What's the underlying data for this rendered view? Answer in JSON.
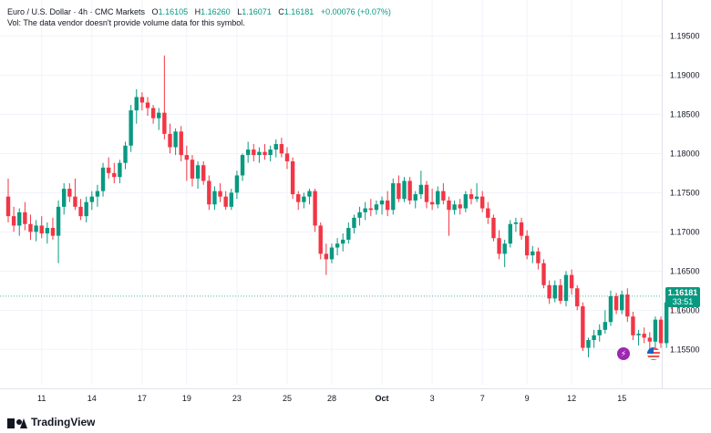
{
  "header": {
    "symbol": "Euro / U.S. Dollar · 4h · CMC Markets",
    "open_label": "O",
    "open": "1.16105",
    "high_label": "H",
    "high": "1.16260",
    "low_label": "L",
    "low": "1.16071",
    "close_label": "C",
    "close": "1.16181",
    "change": "+0.00076 (+0.07%)",
    "volume_note": "Vol: The data vendor doesn't provide volume data for this symbol."
  },
  "last_price": {
    "value": "1.16181",
    "countdown": "33:51"
  },
  "branding": {
    "name": "TradingView"
  },
  "events": {
    "flash_icon": "lightning-icon",
    "flag_icon": "us-flag-icon"
  },
  "colors": {
    "up": "#089981",
    "down": "#f23645",
    "grid": "#f0f3fa",
    "axis_text": "#131722"
  },
  "chart_data": {
    "type": "candlestick",
    "title": "",
    "ylim": [
      1.1505,
      1.199
    ],
    "yticks": [
      "1.19500",
      "1.19000",
      "1.18500",
      "1.18000",
      "1.17500",
      "1.17000",
      "1.16500",
      "1.16000",
      "1.15500"
    ],
    "ytick_values": [
      1.195,
      1.19,
      1.185,
      1.18,
      1.175,
      1.17,
      1.165,
      1.16,
      1.155
    ],
    "xticks": [
      {
        "label": "11",
        "index": 6
      },
      {
        "label": "14",
        "index": 15
      },
      {
        "label": "17",
        "index": 24
      },
      {
        "label": "19",
        "index": 32
      },
      {
        "label": "23",
        "index": 41
      },
      {
        "label": "25",
        "index": 50
      },
      {
        "label": "28",
        "index": 58
      },
      {
        "label": "Oct",
        "index": 67
      },
      {
        "label": "3",
        "index": 76
      },
      {
        "label": "7",
        "index": 85
      },
      {
        "label": "9",
        "index": 93
      },
      {
        "label": "12",
        "index": 101
      },
      {
        "label": "15",
        "index": 110
      }
    ],
    "grid": true,
    "candles": [
      [
        1.1745,
        1.1768,
        1.1712,
        1.172
      ],
      [
        1.172,
        1.1732,
        1.17,
        1.1708
      ],
      [
        1.1708,
        1.173,
        1.1695,
        1.1725
      ],
      [
        1.1725,
        1.1738,
        1.1702,
        1.171
      ],
      [
        1.171,
        1.1722,
        1.169,
        1.17
      ],
      [
        1.17,
        1.1715,
        1.1688,
        1.1708
      ],
      [
        1.1708,
        1.172,
        1.1692,
        1.1698
      ],
      [
        1.1698,
        1.1712,
        1.1685,
        1.1705
      ],
      [
        1.1705,
        1.1718,
        1.169,
        1.1695
      ],
      [
        1.1695,
        1.174,
        1.166,
        1.1732
      ],
      [
        1.1732,
        1.1762,
        1.1722,
        1.1755
      ],
      [
        1.1755,
        1.1762,
        1.1738,
        1.1745
      ],
      [
        1.1745,
        1.1768,
        1.1728,
        1.1732
      ],
      [
        1.1732,
        1.1742,
        1.1715,
        1.172
      ],
      [
        1.172,
        1.1745,
        1.1712,
        1.1738
      ],
      [
        1.1738,
        1.1752,
        1.1728,
        1.1745
      ],
      [
        1.1745,
        1.176,
        1.1732,
        1.1752
      ],
      [
        1.1752,
        1.1788,
        1.1745,
        1.1782
      ],
      [
        1.1782,
        1.1795,
        1.1768,
        1.1775
      ],
      [
        1.1775,
        1.1788,
        1.1762,
        1.177
      ],
      [
        1.177,
        1.1792,
        1.1762,
        1.1788
      ],
      [
        1.1788,
        1.1815,
        1.178,
        1.181
      ],
      [
        1.181,
        1.1862,
        1.1802,
        1.1855
      ],
      [
        1.1855,
        1.1882,
        1.1838,
        1.1872
      ],
      [
        1.1872,
        1.1878,
        1.1855,
        1.1865
      ],
      [
        1.1865,
        1.1872,
        1.1848,
        1.1858
      ],
      [
        1.1858,
        1.1862,
        1.1838,
        1.1845
      ],
      [
        1.1845,
        1.1858,
        1.183,
        1.1852
      ],
      [
        1.1852,
        1.1925,
        1.1818,
        1.1825
      ],
      [
        1.1825,
        1.1838,
        1.18,
        1.1808
      ],
      [
        1.1808,
        1.1832,
        1.1798,
        1.1828
      ],
      [
        1.1828,
        1.1835,
        1.179,
        1.1798
      ],
      [
        1.1798,
        1.181,
        1.1765,
        1.1792
      ],
      [
        1.1792,
        1.1798,
        1.1758,
        1.1768
      ],
      [
        1.1768,
        1.179,
        1.1755,
        1.1785
      ],
      [
        1.1785,
        1.179,
        1.176,
        1.1765
      ],
      [
        1.1765,
        1.1772,
        1.1728,
        1.1735
      ],
      [
        1.1735,
        1.1758,
        1.1728,
        1.1752
      ],
      [
        1.1752,
        1.1762,
        1.1738,
        1.1745
      ],
      [
        1.1745,
        1.1752,
        1.1728,
        1.1732
      ],
      [
        1.1732,
        1.1755,
        1.1728,
        1.175
      ],
      [
        1.175,
        1.1778,
        1.1742,
        1.1772
      ],
      [
        1.1772,
        1.18,
        1.1765,
        1.1798
      ],
      [
        1.1798,
        1.1815,
        1.1788,
        1.1805
      ],
      [
        1.1805,
        1.1812,
        1.179,
        1.1798
      ],
      [
        1.1798,
        1.1808,
        1.1788,
        1.1802
      ],
      [
        1.1802,
        1.1812,
        1.1792,
        1.1798
      ],
      [
        1.1798,
        1.181,
        1.179,
        1.1805
      ],
      [
        1.1805,
        1.1818,
        1.1795,
        1.1812
      ],
      [
        1.1812,
        1.182,
        1.1795,
        1.18
      ],
      [
        1.18,
        1.1808,
        1.178,
        1.179
      ],
      [
        1.179,
        1.1795,
        1.1742,
        1.1748
      ],
      [
        1.1748,
        1.1752,
        1.1728,
        1.1738
      ],
      [
        1.1738,
        1.175,
        1.173,
        1.1745
      ],
      [
        1.1745,
        1.1755,
        1.1735,
        1.1752
      ],
      [
        1.1752,
        1.1755,
        1.17,
        1.1708
      ],
      [
        1.1708,
        1.1712,
        1.1665,
        1.1672
      ],
      [
        1.1672,
        1.1685,
        1.1645,
        1.1665
      ],
      [
        1.1665,
        1.1685,
        1.166,
        1.168
      ],
      [
        1.168,
        1.1692,
        1.167,
        1.1685
      ],
      [
        1.1685,
        1.1698,
        1.1675,
        1.169
      ],
      [
        1.169,
        1.1712,
        1.1685,
        1.1705
      ],
      [
        1.1705,
        1.1722,
        1.1698,
        1.1718
      ],
      [
        1.1718,
        1.1732,
        1.1708,
        1.1725
      ],
      [
        1.1725,
        1.1738,
        1.1715,
        1.173
      ],
      [
        1.173,
        1.1742,
        1.172,
        1.1728
      ],
      [
        1.1728,
        1.174,
        1.1722,
        1.1735
      ],
      [
        1.1735,
        1.1745,
        1.1722,
        1.174
      ],
      [
        1.174,
        1.1752,
        1.172,
        1.1728
      ],
      [
        1.1728,
        1.1768,
        1.1722,
        1.1762
      ],
      [
        1.1762,
        1.1772,
        1.1738,
        1.1742
      ],
      [
        1.1742,
        1.177,
        1.1738,
        1.1765
      ],
      [
        1.1765,
        1.177,
        1.1735,
        1.174
      ],
      [
        1.174,
        1.1752,
        1.173,
        1.1748
      ],
      [
        1.1748,
        1.1778,
        1.1742,
        1.176
      ],
      [
        1.176,
        1.1765,
        1.173,
        1.1738
      ],
      [
        1.1738,
        1.1755,
        1.1728,
        1.1735
      ],
      [
        1.1735,
        1.1758,
        1.173,
        1.1752
      ],
      [
        1.1752,
        1.1762,
        1.1735,
        1.174
      ],
      [
        1.174,
        1.1745,
        1.1695,
        1.1728
      ],
      [
        1.1728,
        1.174,
        1.1722,
        1.1735
      ],
      [
        1.1735,
        1.1742,
        1.1722,
        1.173
      ],
      [
        1.173,
        1.1752,
        1.1725,
        1.1748
      ],
      [
        1.1748,
        1.1755,
        1.1735,
        1.1742
      ],
      [
        1.1742,
        1.1762,
        1.1738,
        1.1745
      ],
      [
        1.1745,
        1.1752,
        1.1725,
        1.173
      ],
      [
        1.173,
        1.1738,
        1.171,
        1.1718
      ],
      [
        1.1718,
        1.1722,
        1.1688,
        1.1692
      ],
      [
        1.1692,
        1.1702,
        1.1665,
        1.1672
      ],
      [
        1.1672,
        1.169,
        1.1655,
        1.1685
      ],
      [
        1.1685,
        1.1715,
        1.168,
        1.171
      ],
      [
        1.171,
        1.1718,
        1.17,
        1.1712
      ],
      [
        1.1712,
        1.1718,
        1.169,
        1.1695
      ],
      [
        1.1695,
        1.1702,
        1.1665,
        1.167
      ],
      [
        1.167,
        1.1682,
        1.166,
        1.1675
      ],
      [
        1.1675,
        1.168,
        1.1652,
        1.166
      ],
      [
        1.166,
        1.1665,
        1.1628,
        1.1632
      ],
      [
        1.1632,
        1.1638,
        1.1608,
        1.1615
      ],
      [
        1.1615,
        1.1638,
        1.161,
        1.1632
      ],
      [
        1.1632,
        1.164,
        1.1608,
        1.1612
      ],
      [
        1.1612,
        1.165,
        1.1605,
        1.1645
      ],
      [
        1.1645,
        1.1652,
        1.162,
        1.1628
      ],
      [
        1.1628,
        1.1632,
        1.16,
        1.1605
      ],
      [
        1.1605,
        1.161,
        1.1548,
        1.1552
      ],
      [
        1.1552,
        1.1565,
        1.154,
        1.1562
      ],
      [
        1.1562,
        1.1575,
        1.1552,
        1.1568
      ],
      [
        1.1568,
        1.1582,
        1.156,
        1.1575
      ],
      [
        1.1575,
        1.16,
        1.157,
        1.1585
      ],
      [
        1.1585,
        1.1625,
        1.158,
        1.1618
      ],
      [
        1.1618,
        1.1622,
        1.1595,
        1.16
      ],
      [
        1.16,
        1.1625,
        1.1595,
        1.162
      ],
      [
        1.162,
        1.1628,
        1.1585,
        1.1592
      ],
      [
        1.1592,
        1.1598,
        1.1562,
        1.1568
      ],
      [
        1.1568,
        1.1575,
        1.1555,
        1.157
      ],
      [
        1.157,
        1.1578,
        1.1558,
        1.1565
      ],
      [
        1.1565,
        1.1572,
        1.1545,
        1.156
      ],
      [
        1.156,
        1.1592,
        1.1548,
        1.1588
      ],
      [
        1.1588,
        1.1592,
        1.1552,
        1.1558
      ],
      [
        1.1558,
        1.1615,
        1.1552,
        1.161
      ],
      [
        1.161,
        1.1618,
        1.1598,
        1.1605
      ],
      [
        1.1605,
        1.1615,
        1.1598,
        1.161
      ],
      [
        1.161,
        1.1626,
        1.1607,
        1.1618
      ]
    ]
  }
}
